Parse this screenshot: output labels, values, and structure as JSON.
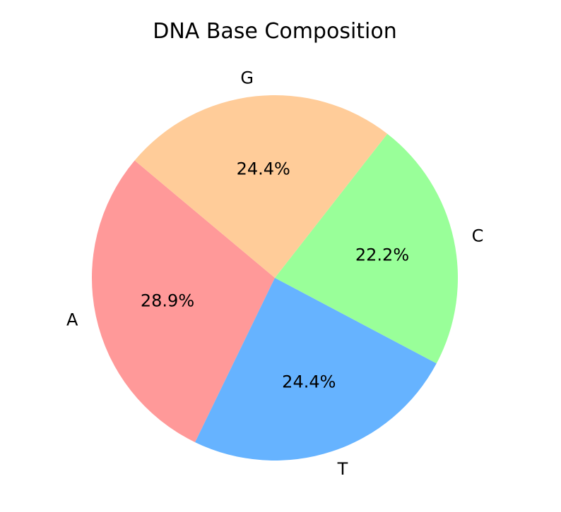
{
  "chart_data": {
    "type": "pie",
    "title": "DNA Base Composition",
    "categories": [
      "A",
      "T",
      "C",
      "G"
    ],
    "values": [
      28.9,
      24.4,
      22.2,
      24.4
    ],
    "percent_labels": [
      "28.9%",
      "24.4%",
      "22.2%",
      "24.4%"
    ],
    "colors": [
      "#ff9999",
      "#66b3ff",
      "#99ff99",
      "#ffcc99"
    ],
    "start_angle_deg": 140,
    "direction": "counterclockwise",
    "legend": "none",
    "grid": false
  }
}
